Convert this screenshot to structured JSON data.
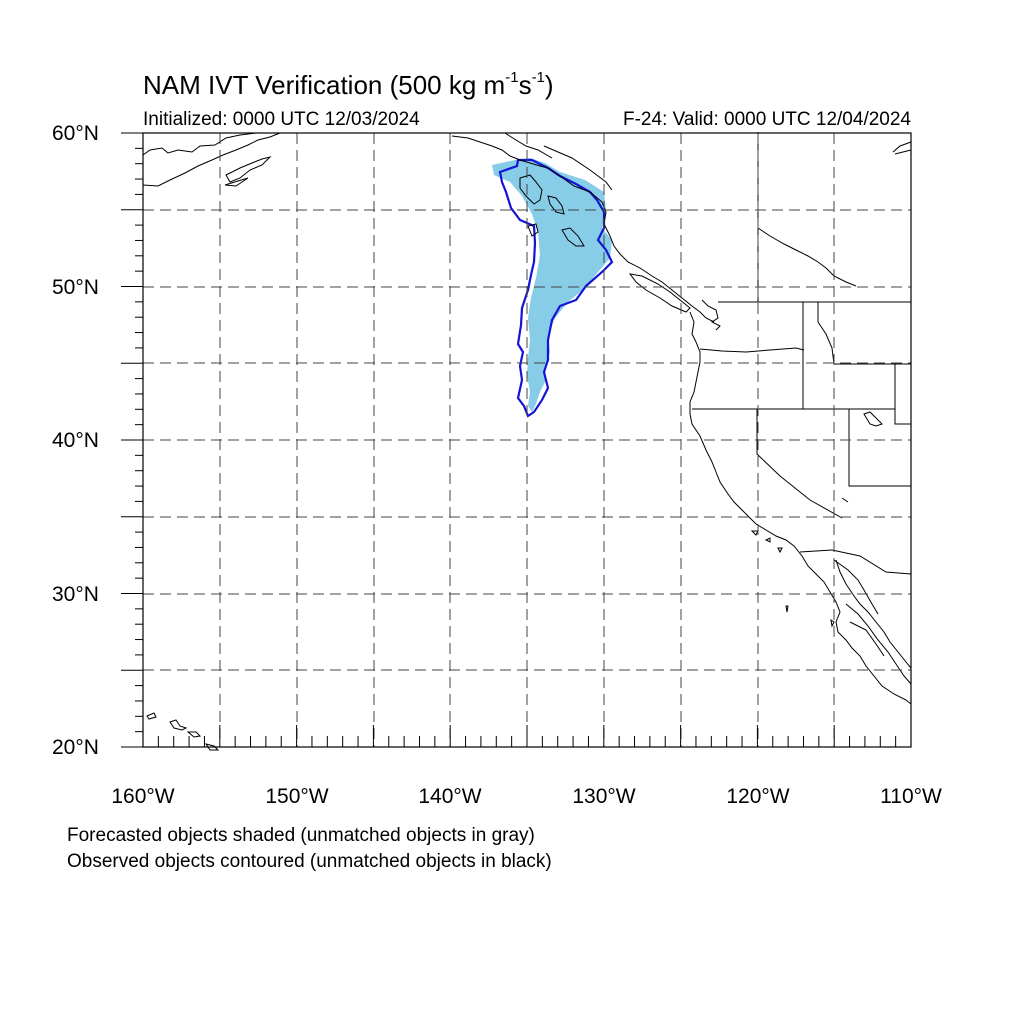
{
  "title": {
    "prefix": "NAM IVT Verification (500 kg m",
    "sup1": "-1",
    "middle": "s",
    "sup2": "-1",
    "suffix": ")"
  },
  "init_text": "Initialized: 0000 UTC 12/03/2024",
  "valid_text": "F-24: Valid: 0000 UTC 12/04/2024",
  "lat_labels": [
    "60°N",
    "50°N",
    "40°N",
    "30°N",
    "20°N"
  ],
  "lon_labels": [
    "160°W",
    "150°W",
    "140°W",
    "130°W",
    "120°W",
    "110°W"
  ],
  "captions": [
    "Forecasted objects shaded (unmatched objects in gray)",
    "Observed objects contoured (unmatched objects in black)"
  ],
  "map": {
    "lon_range": [
      -160,
      -110
    ],
    "lat_range": [
      20,
      60
    ],
    "gridline_style": "dashed",
    "colors": {
      "forecast_fill": "#87cde8",
      "observed_contour": "#1414d6",
      "coastline": "#000000",
      "grid": "#444444"
    }
  }
}
